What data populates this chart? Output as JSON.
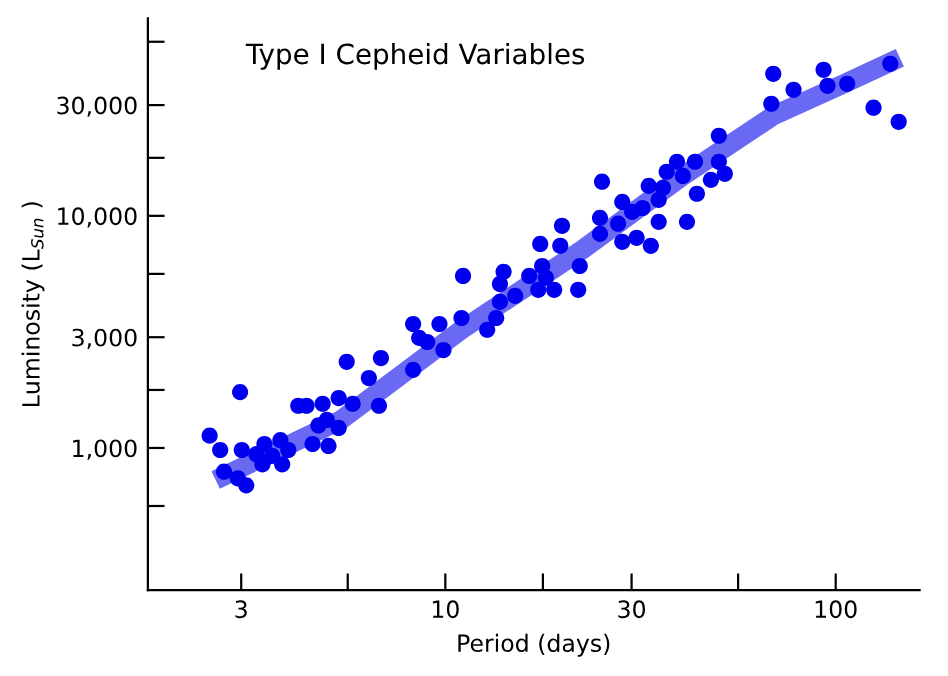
{
  "chart_data": {
    "type": "scatter",
    "title": "Type I Cepheid Variables",
    "xlabel": "Period (days)",
    "ylabel": "Luminosity (L$_{Sun}$ )",
    "log": "xy",
    "grid": false,
    "legend": false,
    "marker": "circle",
    "xlim": [
      1.73,
      164
    ],
    "ylim": [
      244,
      71000
    ],
    "xticks": [
      3,
      {
        "value": 5.623,
        "label": null
      },
      10,
      {
        "value": 17.78,
        "label": null
      },
      30,
      {
        "value": 56.23,
        "label": null
      },
      100
    ],
    "yticks": [
      {
        "value": 562.3,
        "label": null
      },
      {
        "value": 1000,
        "label": "1,000"
      },
      {
        "value": 1778,
        "label": null
      },
      {
        "value": 3000,
        "label": "3,000"
      },
      {
        "value": 5623,
        "label": null
      },
      {
        "value": 10000,
        "label": "10,000"
      },
      {
        "value": 17780,
        "label": null
      },
      {
        "value": 30000,
        "label": "30,000"
      },
      {
        "value": 56230,
        "label": null
      }
    ],
    "series": [
      {
        "type": "line",
        "color": "#4f4ff2",
        "marker": "none",
        "x": [
          2.58,
          5.4,
          11.0,
          22.4,
          40.6,
          69.2,
          105,
          146
        ],
        "values": [
          728,
          1320,
          3230,
          7130,
          14860,
          27000,
          37070,
          48000
        ]
      },
      {
        "color": "#0000ee",
        "x": [
          2.49,
          2.65,
          2.71,
          2.98,
          3.01,
          2.94,
          3.09,
          3.28,
          3.44,
          3.4,
          3.6,
          3.78,
          3.82,
          3.96,
          4.2,
          4.41,
          4.57,
          4.73,
          4.85,
          4.97,
          5.02,
          5.33,
          5.33,
          5.59,
          5.79,
          6.37,
          6.76,
          6.84,
          8.27,
          8.27,
          8.57,
          8.99,
          9.66,
          9.89,
          11.0,
          11.1,
          12.8,
          13.5,
          13.8,
          13.8,
          14.1,
          15.1,
          16.4,
          17.3,
          17.5,
          17.7,
          18.1,
          19.0,
          19.7,
          19.9,
          21.9,
          22.1,
          24.9,
          24.9,
          25.2,
          27.7,
          28.4,
          28.4,
          30.1,
          30.9,
          32.0,
          33.2,
          33.6,
          35.2,
          35.2,
          36.1,
          36.9,
          39.2,
          40.6,
          41.6,
          43.6,
          44.1,
          47.9,
          50.2,
          50.2,
          52.0,
          68.4,
          69.2,
          78.0,
          93.1,
          95.3,
          107,
          125,
          138,
          145
        ],
        "values": [
          1130,
          980,
          790,
          1740,
          980,
          740,
          690,
          940,
          1040,
          850,
          925,
          1080,
          850,
          980,
          1520,
          1520,
          1040,
          1250,
          1550,
          1320,
          1020,
          1220,
          1640,
          2350,
          1550,
          2000,
          1520,
          2440,
          2170,
          3420,
          2980,
          2860,
          3420,
          2640,
          3630,
          5510,
          3230,
          3630,
          4260,
          5090,
          5740,
          4520,
          5510,
          4800,
          7570,
          6080,
          5410,
          4800,
          7430,
          9060,
          4800,
          6080,
          8360,
          9800,
          14030,
          9250,
          7730,
          11480,
          10400,
          8040,
          10810,
          13460,
          7430,
          11720,
          9420,
          13210,
          15490,
          17100,
          14860,
          9420,
          17100,
          12450,
          14290,
          17100,
          22130,
          15170,
          30410,
          40930,
          34910,
          42560,
          36310,
          37070,
          29240,
          45190,
          25410
        ]
      }
    ]
  }
}
